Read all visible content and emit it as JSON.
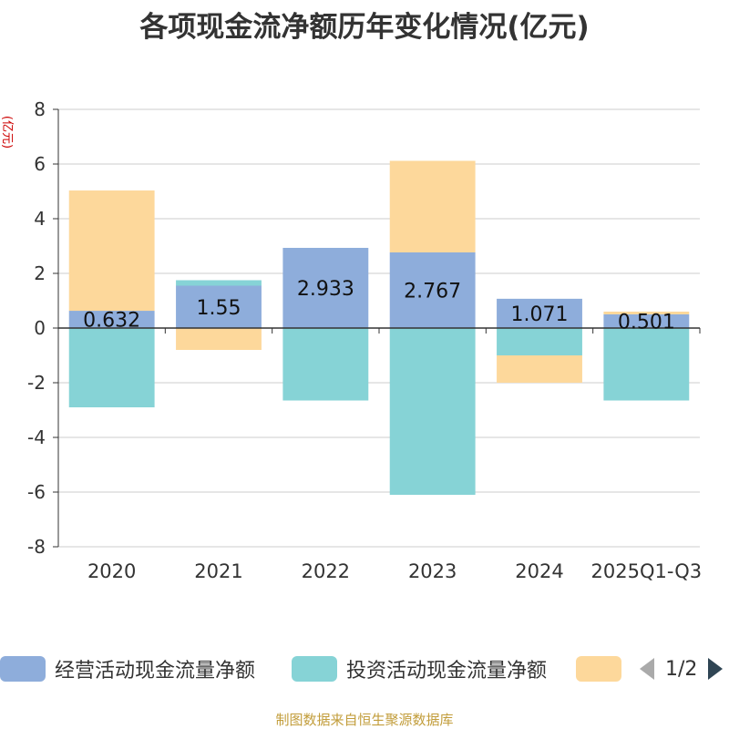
{
  "chart_data": {
    "type": "bar",
    "stacked": true,
    "title": "各项现金流净额历年变化情况(亿元)",
    "ylabel": "(亿元)",
    "xlabel": "",
    "ylim": [
      -8,
      8
    ],
    "yticks": [
      8,
      6,
      4,
      2,
      0,
      -2,
      -4,
      -6,
      -8
    ],
    "categories": [
      "2020",
      "2021",
      "2022",
      "2023",
      "2024",
      "2025Q1-Q3"
    ],
    "series": [
      {
        "name": "经营活动现金流量净额",
        "color": "#8eaddb",
        "values": [
          0.632,
          1.55,
          2.933,
          2.767,
          1.071,
          0.501
        ],
        "show_labels": true
      },
      {
        "name": "投资活动现金流量净额",
        "color": "#86d3d6",
        "values": [
          -2.9,
          0.2,
          -2.65,
          -6.1,
          -1.0,
          -2.65
        ],
        "show_labels": false
      },
      {
        "name": "",
        "color": "#fdd89b",
        "values": [
          4.4,
          -0.8,
          0.0,
          3.35,
          -1.0,
          0.1
        ],
        "show_labels": false
      }
    ],
    "grid": true,
    "legend_position": "bottom"
  },
  "legend": {
    "page_indicator": "1/2"
  },
  "footer": {
    "source": "制图数据来自恒生聚源数据库"
  }
}
